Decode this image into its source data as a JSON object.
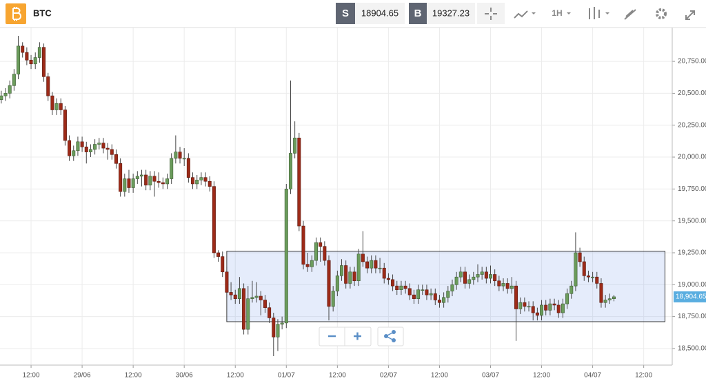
{
  "header": {
    "symbol": "BTC",
    "sell_label": "S",
    "sell_price": "18904.65",
    "buy_label": "B",
    "buy_price": "19327.23",
    "interval": "1H"
  },
  "chart_data": {
    "type": "candlestick",
    "up_color": "#6b9c5c",
    "down_color": "#9c2a18",
    "xlim": [
      -7.3,
      150.7
    ],
    "ylim": [
      18370,
      21015
    ],
    "grid": true,
    "xticks": [
      {
        "value": 0,
        "label": "12:00"
      },
      {
        "value": 12,
        "label": "29/06"
      },
      {
        "value": 24,
        "label": "12:00"
      },
      {
        "value": 36,
        "label": "30/06"
      },
      {
        "value": 48,
        "label": "12:00"
      },
      {
        "value": 60,
        "label": "01/07"
      },
      {
        "value": 72,
        "label": "12:00"
      },
      {
        "value": 84,
        "label": "02/07"
      },
      {
        "value": 96,
        "label": "12:00"
      },
      {
        "value": 108,
        "label": "03/07"
      },
      {
        "value": 120,
        "label": "12:00"
      },
      {
        "value": 132,
        "label": "04/07"
      },
      {
        "value": 144,
        "label": "12:00"
      }
    ],
    "yticks": [
      {
        "value": 18500,
        "label": "18,500.00"
      },
      {
        "value": 18750,
        "label": "18,750.00"
      },
      {
        "value": 19000,
        "label": "19,000.00"
      },
      {
        "value": 19250,
        "label": "19,250.00"
      },
      {
        "value": 19500,
        "label": "19,500.00"
      },
      {
        "value": 19750,
        "label": "19,750.00"
      },
      {
        "value": 20000,
        "label": "20,000.00"
      },
      {
        "value": 20250,
        "label": "20,250.00"
      },
      {
        "value": 20500,
        "label": "20,500.00"
      },
      {
        "value": 20750,
        "label": "20,750.00"
      }
    ],
    "last_price": {
      "value": 18904.65,
      "label": "18,904.65"
    },
    "range_box": {
      "xlim": [
        46,
        149
      ],
      "ylim": [
        18710,
        19262
      ]
    },
    "x": [
      -7,
      -6,
      -5,
      -4,
      -3,
      -2,
      -1,
      0,
      1,
      2,
      3,
      4,
      5,
      6,
      7,
      8,
      9,
      10,
      11,
      12,
      13,
      14,
      15,
      16,
      17,
      18,
      19,
      20,
      21,
      22,
      23,
      24,
      25,
      26,
      27,
      28,
      29,
      30,
      31,
      32,
      33,
      34,
      35,
      36,
      37,
      38,
      39,
      40,
      41,
      42,
      43,
      44,
      45,
      46,
      47,
      48,
      49,
      50,
      51,
      52,
      53,
      54,
      55,
      56,
      57,
      58,
      59,
      60,
      61,
      62,
      63,
      64,
      65,
      66,
      67,
      68,
      69,
      70,
      71,
      72,
      73,
      74,
      75,
      76,
      77,
      78,
      79,
      80,
      81,
      82,
      83,
      84,
      85,
      86,
      87,
      88,
      89,
      90,
      91,
      92,
      93,
      94,
      95,
      96,
      97,
      98,
      99,
      100,
      101,
      102,
      103,
      104,
      105,
      106,
      107,
      108,
      109,
      110,
      111,
      112,
      113,
      114,
      115,
      116,
      117,
      118,
      119,
      120,
      121,
      122,
      123,
      124,
      125,
      126,
      127,
      128,
      129,
      130,
      131,
      132,
      133,
      134,
      135,
      136,
      137
    ],
    "open": [
      20450,
      20480,
      20500,
      20560,
      20650,
      20870,
      20820,
      20760,
      20730,
      20780,
      20860,
      20630,
      20480,
      20370,
      20420,
      20370,
      20130,
      20010,
      20050,
      20120,
      20080,
      20040,
      20060,
      20100,
      20110,
      20070,
      20060,
      20020,
      19950,
      19730,
      19830,
      19760,
      19830,
      19850,
      19860,
      19780,
      19850,
      19810,
      19800,
      19790,
      19830,
      19990,
      20040,
      19990,
      19990,
      19840,
      19790,
      19820,
      19840,
      19810,
      19770,
      19250,
      19220,
      19100,
      18940,
      18920,
      18890,
      18970,
      18650,
      18890,
      18900,
      18910,
      18880,
      18820,
      18740,
      18590,
      18690,
      18700,
      19750,
      20030,
      20150,
      19460,
      19160,
      19140,
      19190,
      19330,
      19300,
      19190,
      18830,
      18950,
      19070,
      19150,
      19010,
      19100,
      19030,
      19240,
      19180,
      19130,
      19190,
      19130,
      19130,
      19050,
      19040,
      18990,
      18960,
      18990,
      18970,
      18920,
      18890,
      18960,
      18960,
      18920,
      18930,
      18880,
      18860,
      18900,
      18950,
      19000,
      19060,
      19100,
      19010,
      19040,
      19060,
      19080,
      19100,
      19050,
      19080,
      19030,
      18990,
      19010,
      18970,
      18990,
      18810,
      18860,
      18830,
      18830,
      18780,
      18760,
      18840,
      18800,
      18850,
      18840,
      18780,
      18850,
      18930,
      18990,
      19250,
      19180,
      19070,
      19060,
      19060,
      19010,
      18860,
      18880,
      18890
    ],
    "high": [
      20520,
      20540,
      20600,
      20690,
      20950,
      20900,
      20860,
      20800,
      20820,
      20900,
      20890,
      20660,
      20510,
      20460,
      20460,
      20400,
      20170,
      20090,
      20160,
      20160,
      20120,
      20100,
      20140,
      20150,
      20150,
      20110,
      20100,
      20060,
      19990,
      19870,
      19900,
      19870,
      19890,
      19900,
      19900,
      19890,
      19890,
      19880,
      19840,
      19870,
      20030,
      20170,
      20080,
      20070,
      20030,
      19880,
      19860,
      19880,
      19880,
      19850,
      19810,
      19270,
      19260,
      19140,
      19020,
      18960,
      19060,
      19010,
      18990,
      19030,
      19020,
      18950,
      18920,
      18860,
      18780,
      18730,
      18750,
      19790,
      20600,
      20280,
      20190,
      19500,
      19250,
      19230,
      19370,
      19370,
      19340,
      19230,
      18990,
      19110,
      19200,
      19190,
      19140,
      19140,
      19280,
      19420,
      19220,
      19230,
      19230,
      19210,
      19170,
      19090,
      19080,
      19030,
      19030,
      19030,
      19010,
      18960,
      19000,
      19000,
      19000,
      18970,
      18970,
      18920,
      18940,
      18990,
      19040,
      19100,
      19140,
      19140,
      19080,
      19100,
      19160,
      19140,
      19140,
      19150,
      19120,
      19070,
      19050,
      19050,
      19060,
      19030,
      18900,
      18900,
      18870,
      18870,
      18820,
      18880,
      18880,
      18890,
      18890,
      18880,
      18890,
      18970,
      19030,
      19410,
      19290,
      19220,
      19110,
      19100,
      19100,
      19050,
      18920,
      18930,
      18920
    ],
    "low": [
      20420,
      20440,
      20460,
      20520,
      20610,
      20780,
      20720,
      20690,
      20690,
      20740,
      20590,
      20440,
      20330,
      20330,
      20330,
      20090,
      19970,
      19970,
      20010,
      20040,
      19950,
      20000,
      20020,
      20060,
      20030,
      19980,
      19980,
      19910,
      19690,
      19690,
      19720,
      19720,
      19790,
      19770,
      19740,
      19740,
      19690,
      19760,
      19750,
      19750,
      19790,
      19950,
      19950,
      19930,
      19800,
      19750,
      19750,
      19780,
      19770,
      19730,
      19210,
      19180,
      19060,
      18900,
      18880,
      18850,
      18850,
      18610,
      18610,
      18860,
      18860,
      18760,
      18780,
      18700,
      18440,
      18480,
      18650,
      18660,
      19710,
      19990,
      19420,
      19120,
      19100,
      19100,
      19150,
      19180,
      19150,
      18720,
      18790,
      18910,
      19030,
      18970,
      18970,
      18990,
      18990,
      19140,
      19090,
      19090,
      19090,
      19090,
      19010,
      19000,
      18950,
      18920,
      18920,
      18930,
      18880,
      18850,
      18850,
      18920,
      18880,
      18880,
      18840,
      18820,
      18820,
      18860,
      18910,
      18960,
      19020,
      18970,
      18970,
      19000,
      19020,
      19040,
      19010,
      19010,
      18990,
      18950,
      18950,
      18930,
      18930,
      18560,
      18770,
      18790,
      18790,
      18720,
      18720,
      18720,
      18760,
      18760,
      18800,
      18740,
      18740,
      18810,
      18890,
      18950,
      19140,
      19030,
      19020,
      19020,
      18970,
      18820,
      18820,
      18850,
      18870
    ],
    "close": [
      20480,
      20500,
      20560,
      20650,
      20870,
      20820,
      20760,
      20730,
      20780,
      20860,
      20630,
      20480,
      20370,
      20420,
      20370,
      20130,
      20010,
      20050,
      20120,
      20080,
      20040,
      20060,
      20100,
      20110,
      20070,
      20060,
      20020,
      19950,
      19730,
      19830,
      19760,
      19830,
      19850,
      19860,
      19780,
      19850,
      19810,
      19800,
      19790,
      19830,
      19990,
      20040,
      19990,
      19990,
      19840,
      19790,
      19820,
      19840,
      19810,
      19770,
      19250,
      19220,
      19100,
      18940,
      18920,
      18890,
      18970,
      18650,
      18890,
      18900,
      18910,
      18880,
      18820,
      18740,
      18590,
      18690,
      18700,
      19750,
      20030,
      20150,
      19460,
      19160,
      19140,
      19190,
      19330,
      19300,
      19190,
      18830,
      18950,
      19070,
      19150,
      19010,
      19100,
      19030,
      19240,
      19180,
      19130,
      19190,
      19130,
      19130,
      19050,
      19040,
      18990,
      18960,
      18990,
      18970,
      18920,
      18890,
      18960,
      18960,
      18920,
      18930,
      18880,
      18860,
      18900,
      18950,
      19000,
      19060,
      19100,
      19010,
      19040,
      19060,
      19080,
      19100,
      19050,
      19080,
      19030,
      18990,
      19010,
      18970,
      18990,
      18810,
      18860,
      18830,
      18830,
      18780,
      18760,
      18840,
      18800,
      18850,
      18840,
      18780,
      18850,
      18930,
      18990,
      19250,
      19180,
      19070,
      19060,
      19060,
      19010,
      18860,
      18880,
      18890,
      18905
    ]
  }
}
